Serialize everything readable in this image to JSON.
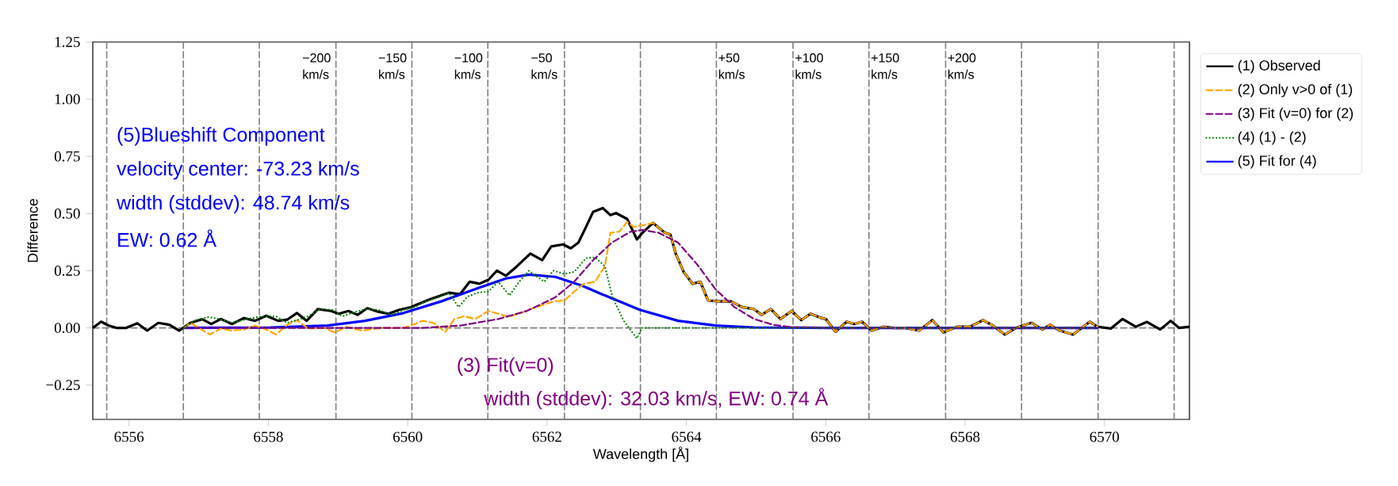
{
  "chart_data": {
    "type": "line",
    "xlabel": "Wavelength [Å]",
    "ylabel": "Difference",
    "xlim": [
      6555.48,
      6571.22
    ],
    "ylim": [
      -0.4,
      1.25
    ],
    "xticks": [
      6556,
      6558,
      6560,
      6562,
      6564,
      6566,
      6568,
      6570
    ],
    "yticks": [
      {
        "value": -0.25,
        "label": "−0.25"
      },
      {
        "value": 0,
        "label": "0.00"
      },
      {
        "value": 0.25,
        "label": "0.25"
      },
      {
        "value": 0.5,
        "label": "0.50"
      },
      {
        "value": 0.75,
        "label": "0.75"
      },
      {
        "value": 1,
        "label": "1.00"
      },
      {
        "value": 1.25,
        "label": "1.25"
      }
    ],
    "legend": "top right",
    "series": [
      {
        "name": "(1) Observed",
        "color": "#000000",
        "line_style": "solid",
        "x": [
          6555.48,
          6555.6,
          6555.71,
          6555.82,
          6555.96,
          6556.12,
          6556.26,
          6556.42,
          6556.58,
          6556.72,
          6556.88,
          6557.05,
          6557.18,
          6557.32,
          6557.48,
          6557.65,
          6557.81,
          6557.97,
          6558.14,
          6558.27,
          6558.41,
          6558.55,
          6558.71,
          6558.9,
          6559.01,
          6559.15,
          6559.28,
          6559.42,
          6559.56,
          6559.72,
          6559.88,
          6560.05,
          6560.18,
          6560.32,
          6560.45,
          6560.59,
          6560.75,
          6560.89,
          6561.03,
          6561.16,
          6561.28,
          6561.41,
          6561.57,
          6561.76,
          6561.93,
          6562.06,
          6562.23,
          6562.34,
          6562.45,
          6562.56,
          6562.66,
          6562.8,
          6562.91,
          6562.99,
          6563.15,
          6563.29,
          6563.37,
          6563.52,
          6563.69,
          6563.77,
          6563.85,
          6563.96,
          6564.09,
          6564.2,
          6564.31,
          6564.48,
          6564.64,
          6564.8,
          6564.97,
          6565.08,
          6565.21,
          6565.35,
          6565.51,
          6565.65,
          6565.78,
          6565.92,
          6566.0,
          6566.14,
          6566.3,
          6566.41,
          6566.52,
          6566.66,
          6566.82,
          6566.98,
          6567.15,
          6567.34,
          6567.53,
          6567.69,
          6567.88,
          6568.07,
          6568.26,
          6568.4,
          6568.57,
          6568.73,
          6568.95,
          6569.11,
          6569.22,
          6569.36,
          6569.55,
          6569.79,
          6569.9,
          6570.09,
          6570.26,
          6570.45,
          6570.61,
          6570.8,
          6570.95,
          6571.07,
          6571.22
        ],
        "values": [
          0,
          0.027,
          0.01,
          0,
          0,
          0.02,
          -0.012,
          0.022,
          0.014,
          -0.012,
          0.022,
          0.038,
          0.017,
          0.039,
          0.017,
          0.043,
          0.031,
          0.053,
          0.031,
          0.036,
          0.065,
          0.031,
          0.082,
          0.074,
          0.062,
          0.074,
          0.057,
          0.086,
          0.072,
          0.062,
          0.079,
          0.091,
          0.108,
          0.125,
          0.139,
          0.154,
          0.147,
          0.202,
          0.193,
          0.211,
          0.25,
          0.228,
          0.27,
          0.325,
          0.296,
          0.356,
          0.365,
          0.348,
          0.373,
          0.442,
          0.507,
          0.524,
          0.493,
          0.502,
          0.476,
          0.387,
          0.416,
          0.459,
          0.416,
          0.408,
          0.322,
          0.245,
          0.193,
          0.202,
          0.12,
          0.116,
          0.116,
          0.091,
          0.082,
          0.057,
          0.082,
          0.039,
          0.074,
          0.034,
          0.062,
          0.045,
          0.039,
          -0.017,
          0.027,
          0.017,
          0.027,
          -0.012,
          0.005,
          0,
          0,
          -0.012,
          0.034,
          -0.02,
          0.005,
          0.005,
          0.034,
          0.01,
          -0.029,
          0,
          0.022,
          -0.007,
          0.014,
          -0.012,
          -0.029,
          0.027,
          0.005,
          -0.003,
          0.039,
          0.005,
          0.026,
          -0.007,
          0.031,
          0,
          0.005
        ]
      },
      {
        "name": "(2) Only v>0 of (1)",
        "color": "#ffa500",
        "line_style": "dashed",
        "x": [
          6556.79,
          6556.88,
          6557.02,
          6557.16,
          6557.32,
          6557.48,
          6557.65,
          6557.81,
          6557.97,
          6558.11,
          6558.27,
          6558.41,
          6558.57,
          6558.79,
          6558.96,
          6559.12,
          6559.34,
          6559.61,
          6559.94,
          6560.1,
          6560.21,
          6560.37,
          6560.54,
          6560.67,
          6560.81,
          6560.97,
          6561.16,
          6561.3,
          6561.44,
          6561.6,
          6561.76,
          6561.93,
          6562.09,
          6562.25,
          6562.39,
          6562.53,
          6562.69,
          6562.83,
          6562.91,
          6563.04,
          6563.15,
          6563.24,
          6563.4,
          6563.52,
          6563.69,
          6563.77,
          6563.85,
          6563.96,
          6564.09,
          6564.2,
          6564.31,
          6564.48,
          6564.64,
          6564.8,
          6564.97,
          6565.08,
          6565.21,
          6565.35,
          6565.51,
          6565.65,
          6565.78,
          6565.92,
          6566.0,
          6566.14,
          6566.3,
          6566.41,
          6566.52,
          6566.66,
          6566.82,
          6566.98,
          6567.15,
          6567.34,
          6567.53,
          6567.69,
          6567.88,
          6568.07,
          6568.26,
          6568.4,
          6568.57,
          6568.73,
          6568.95,
          6569.11,
          6569.22,
          6569.36,
          6569.55,
          6569.79,
          6569.9
        ],
        "values": [
          0,
          0.022,
          -0.003,
          -0.029,
          -0.003,
          -0.012,
          -0.007,
          0.01,
          -0.007,
          -0.029,
          0.014,
          0.034,
          -0.003,
          0,
          -0.02,
          0.005,
          -0.012,
          0,
          0,
          0.017,
          0.031,
          0.022,
          -0.017,
          0.039,
          0.051,
          0.039,
          0.074,
          0.062,
          0.048,
          0.062,
          0.082,
          0.099,
          0.116,
          0.12,
          0.159,
          0.193,
          0.202,
          0.27,
          0.416,
          0.421,
          0.464,
          0.442,
          0.45,
          0.459,
          0.416,
          0.408,
          0.322,
          0.245,
          0.193,
          0.202,
          0.12,
          0.116,
          0.116,
          0.091,
          0.082,
          0.057,
          0.082,
          0.039,
          0.074,
          0.034,
          0.062,
          0.045,
          0.039,
          -0.017,
          0.027,
          0.017,
          0.027,
          -0.012,
          0.005,
          0,
          0,
          -0.012,
          0.034,
          -0.02,
          0.005,
          0.005,
          0.034,
          0.01,
          -0.029,
          0,
          0.022,
          -0.007,
          0.014,
          -0.012,
          -0.029,
          0.027,
          0.005
        ]
      },
      {
        "name": "(3) Fit (v=0) for (2)",
        "color": "#800080",
        "line_style": "dashed",
        "x": [
          6556.79,
          6560.21,
          6560.75,
          6561.3,
          6561.71,
          6562.12,
          6562.39,
          6562.66,
          6562.93,
          6563.2,
          6563.37,
          6563.6,
          6563.88,
          6564.15,
          6564.42,
          6564.69,
          6564.97,
          6565.24,
          6565.51,
          6566.06,
          6569.9
        ],
        "values": [
          0,
          0,
          0.01,
          0.039,
          0.074,
          0.134,
          0.202,
          0.296,
          0.373,
          0.421,
          0.428,
          0.416,
          0.373,
          0.279,
          0.168,
          0.091,
          0.039,
          0.014,
          0.003,
          0,
          0
        ]
      },
      {
        "name": "(4) (1) - (2)",
        "color": "#008000",
        "line_style": "dotted",
        "x": [
          6556.79,
          6556.94,
          6557.13,
          6557.29,
          6557.48,
          6557.7,
          6557.92,
          6558.11,
          6558.27,
          6558.41,
          6558.57,
          6558.74,
          6558.93,
          6559.06,
          6559.23,
          6559.39,
          6559.58,
          6559.77,
          6559.94,
          6560.1,
          6560.26,
          6560.45,
          6560.59,
          6560.73,
          6560.86,
          6561.0,
          6561.16,
          6561.3,
          6561.46,
          6561.6,
          6561.74,
          6561.96,
          6562.09,
          6562.25,
          6562.39,
          6562.56,
          6562.69,
          6562.83,
          6562.94,
          6563.1,
          6563.29,
          6563.36,
          6569.9
        ],
        "values": [
          0,
          0.031,
          0.048,
          0.039,
          0.022,
          0.039,
          0.051,
          0.051,
          0.022,
          0.034,
          0.051,
          0.082,
          0.079,
          0.051,
          0.068,
          0.082,
          0.079,
          0.057,
          0.079,
          0.091,
          0.116,
          0.134,
          0.154,
          0.091,
          0.137,
          0.154,
          0.159,
          0.202,
          0.142,
          0.202,
          0.25,
          0.202,
          0.25,
          0.236,
          0.245,
          0.305,
          0.308,
          0.27,
          0.134,
          0.031,
          -0.046,
          0,
          0
        ]
      },
      {
        "name": "(5) Fit for (4)",
        "color": "#0000ff",
        "line_style": "solid",
        "x": [
          6556.79,
          6558.03,
          6558.85,
          6559.39,
          6559.94,
          6560.48,
          6561.03,
          6561.41,
          6561.74,
          6562.12,
          6562.5,
          6562.79,
          6563.33,
          6563.88,
          6564.42,
          6564.97,
          6566.06,
          6569.9
        ],
        "values": [
          0,
          0.002,
          0.01,
          0.031,
          0.065,
          0.116,
          0.176,
          0.216,
          0.233,
          0.223,
          0.185,
          0.147,
          0.079,
          0.031,
          0.01,
          0.002,
          0,
          0
        ]
      }
    ],
    "ref_lines": [
      {
        "axis": "y",
        "value": 0,
        "color": "#808080",
        "line_style": "dashed"
      },
      {
        "axis": "x",
        "value": 6555.68,
        "color": "#808080",
        "line_style": "dashed"
      },
      {
        "axis": "x",
        "value": 6556.78,
        "color": "#808080",
        "line_style": "dashed"
      },
      {
        "axis": "x",
        "value": 6557.87,
        "color": "#808080",
        "line_style": "dashed"
      },
      {
        "axis": "x",
        "value": 6558.97,
        "label": "−200 km/s",
        "color": "#808080",
        "line_style": "dashed"
      },
      {
        "axis": "x",
        "value": 6560.06,
        "label": "−150 km/s",
        "color": "#808080",
        "line_style": "dashed"
      },
      {
        "axis": "x",
        "value": 6561.15,
        "label": "−100 km/s",
        "color": "#808080",
        "line_style": "dashed"
      },
      {
        "axis": "x",
        "value": 6562.25,
        "label": "−50 km/s",
        "color": "#808080",
        "line_style": "dashed"
      },
      {
        "axis": "x",
        "value": 6563.34,
        "color": "#808080",
        "line_style": "dashed"
      },
      {
        "axis": "x",
        "value": 6564.43,
        "label": "+50 km/s",
        "color": "#808080",
        "line_style": "dashed"
      },
      {
        "axis": "x",
        "value": 6565.53,
        "label": "+100 km/s",
        "color": "#808080",
        "line_style": "dashed"
      },
      {
        "axis": "x",
        "value": 6566.62,
        "label": "+150 km/s",
        "color": "#808080",
        "line_style": "dashed"
      },
      {
        "axis": "x",
        "value": 6567.72,
        "label": "+200 km/s",
        "color": "#808080",
        "line_style": "dashed"
      },
      {
        "axis": "x",
        "value": 6568.81,
        "color": "#808080",
        "line_style": "dashed"
      },
      {
        "axis": "x",
        "value": 6569.91,
        "color": "#808080",
        "line_style": "dashed"
      },
      {
        "axis": "x",
        "value": 6571.0,
        "color": "#808080",
        "line_style": "dashed"
      }
    ],
    "annotations": [
      "(5)Blueshift Component",
      "velocity center: -73.23 km/s",
      "width (stddev): 48.74 km/s",
      "EW: 0.62 Å",
      "(3) Fit(v=0)",
      "width (stddev): 32.03 km/s, EW: 0.74 Å"
    ]
  }
}
